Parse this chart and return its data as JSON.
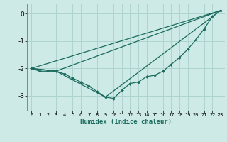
{
  "xlabel": "Humidex (Indice chaleur)",
  "ylabel": "",
  "background_color": "#ceeae6",
  "grid_color": "#aed4cf",
  "line_color": "#1a6b5e",
  "xlim": [
    -0.5,
    23.5
  ],
  "ylim": [
    -3.55,
    0.35
  ],
  "yticks": [
    0,
    -1,
    -2,
    -3
  ],
  "ytick_labels": [
    "0",
    "-1",
    "-2",
    "-3"
  ],
  "xticks": [
    0,
    1,
    2,
    3,
    4,
    5,
    6,
    7,
    8,
    9,
    10,
    11,
    12,
    13,
    14,
    15,
    16,
    17,
    18,
    19,
    20,
    21,
    22,
    23
  ],
  "line1_x": [
    0,
    1,
    2,
    3,
    4,
    5,
    6,
    7,
    8,
    9,
    10,
    11,
    12,
    13,
    14,
    15,
    16,
    17,
    18,
    19,
    20,
    21,
    22,
    23
  ],
  "line1_y": [
    -2.0,
    -2.1,
    -2.1,
    -2.1,
    -2.2,
    -2.35,
    -2.5,
    -2.65,
    -2.85,
    -3.05,
    -3.1,
    -2.8,
    -2.55,
    -2.5,
    -2.3,
    -2.25,
    -2.1,
    -1.85,
    -1.6,
    -1.3,
    -0.95,
    -0.55,
    -0.1,
    0.12
  ],
  "line2_x": [
    0,
    23
  ],
  "line2_y": [
    -2.0,
    0.12
  ],
  "line3_x": [
    0,
    3,
    23
  ],
  "line3_y": [
    -2.0,
    -2.1,
    0.12
  ],
  "line4_x": [
    0,
    3,
    9,
    23
  ],
  "line4_y": [
    -2.0,
    -2.1,
    -3.05,
    0.12
  ]
}
